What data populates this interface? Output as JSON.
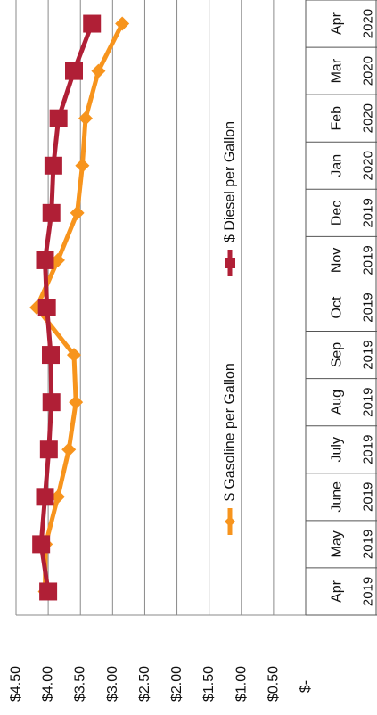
{
  "chart_data": {
    "type": "line",
    "orientation": "rotated-90-clockwise",
    "categories": [
      {
        "month": "Apr",
        "year": "2019"
      },
      {
        "month": "May",
        "year": "2019"
      },
      {
        "month": "June",
        "year": "2019"
      },
      {
        "month": "July",
        "year": "2019"
      },
      {
        "month": "Aug",
        "year": "2019"
      },
      {
        "month": "Sep",
        "year": "2019"
      },
      {
        "month": "Oct",
        "year": "2019"
      },
      {
        "month": "Nov",
        "year": "2019"
      },
      {
        "month": "Dec",
        "year": "2019"
      },
      {
        "month": "Jan",
        "year": "2020"
      },
      {
        "month": "Feb",
        "year": "2020"
      },
      {
        "month": "Mar",
        "year": "2020"
      },
      {
        "month": "Apr",
        "year": "2020"
      }
    ],
    "series": [
      {
        "name": "$ Gasoline per Gallon",
        "color": "#f7941d",
        "marker": "diamond",
        "values": [
          4.05,
          4.04,
          3.85,
          3.68,
          3.57,
          3.6,
          4.18,
          3.85,
          3.55,
          3.47,
          3.42,
          3.22,
          2.85
        ]
      },
      {
        "name": "$ Diesel per Gallon",
        "color": "#b01f36",
        "marker": "square",
        "values": [
          4.0,
          4.11,
          4.05,
          3.99,
          3.95,
          3.96,
          4.02,
          4.05,
          3.95,
          3.92,
          3.84,
          3.6,
          3.32
        ]
      }
    ],
    "y_ticks": [
      "$4.50",
      "$4.00",
      "$3.50",
      "$3.00",
      "$2.50",
      "$2.00",
      "$1.50",
      "$1.00",
      "$0.50",
      "$-"
    ],
    "ylim": [
      0,
      4.5
    ],
    "gridlines": true,
    "legend_position": "center"
  }
}
